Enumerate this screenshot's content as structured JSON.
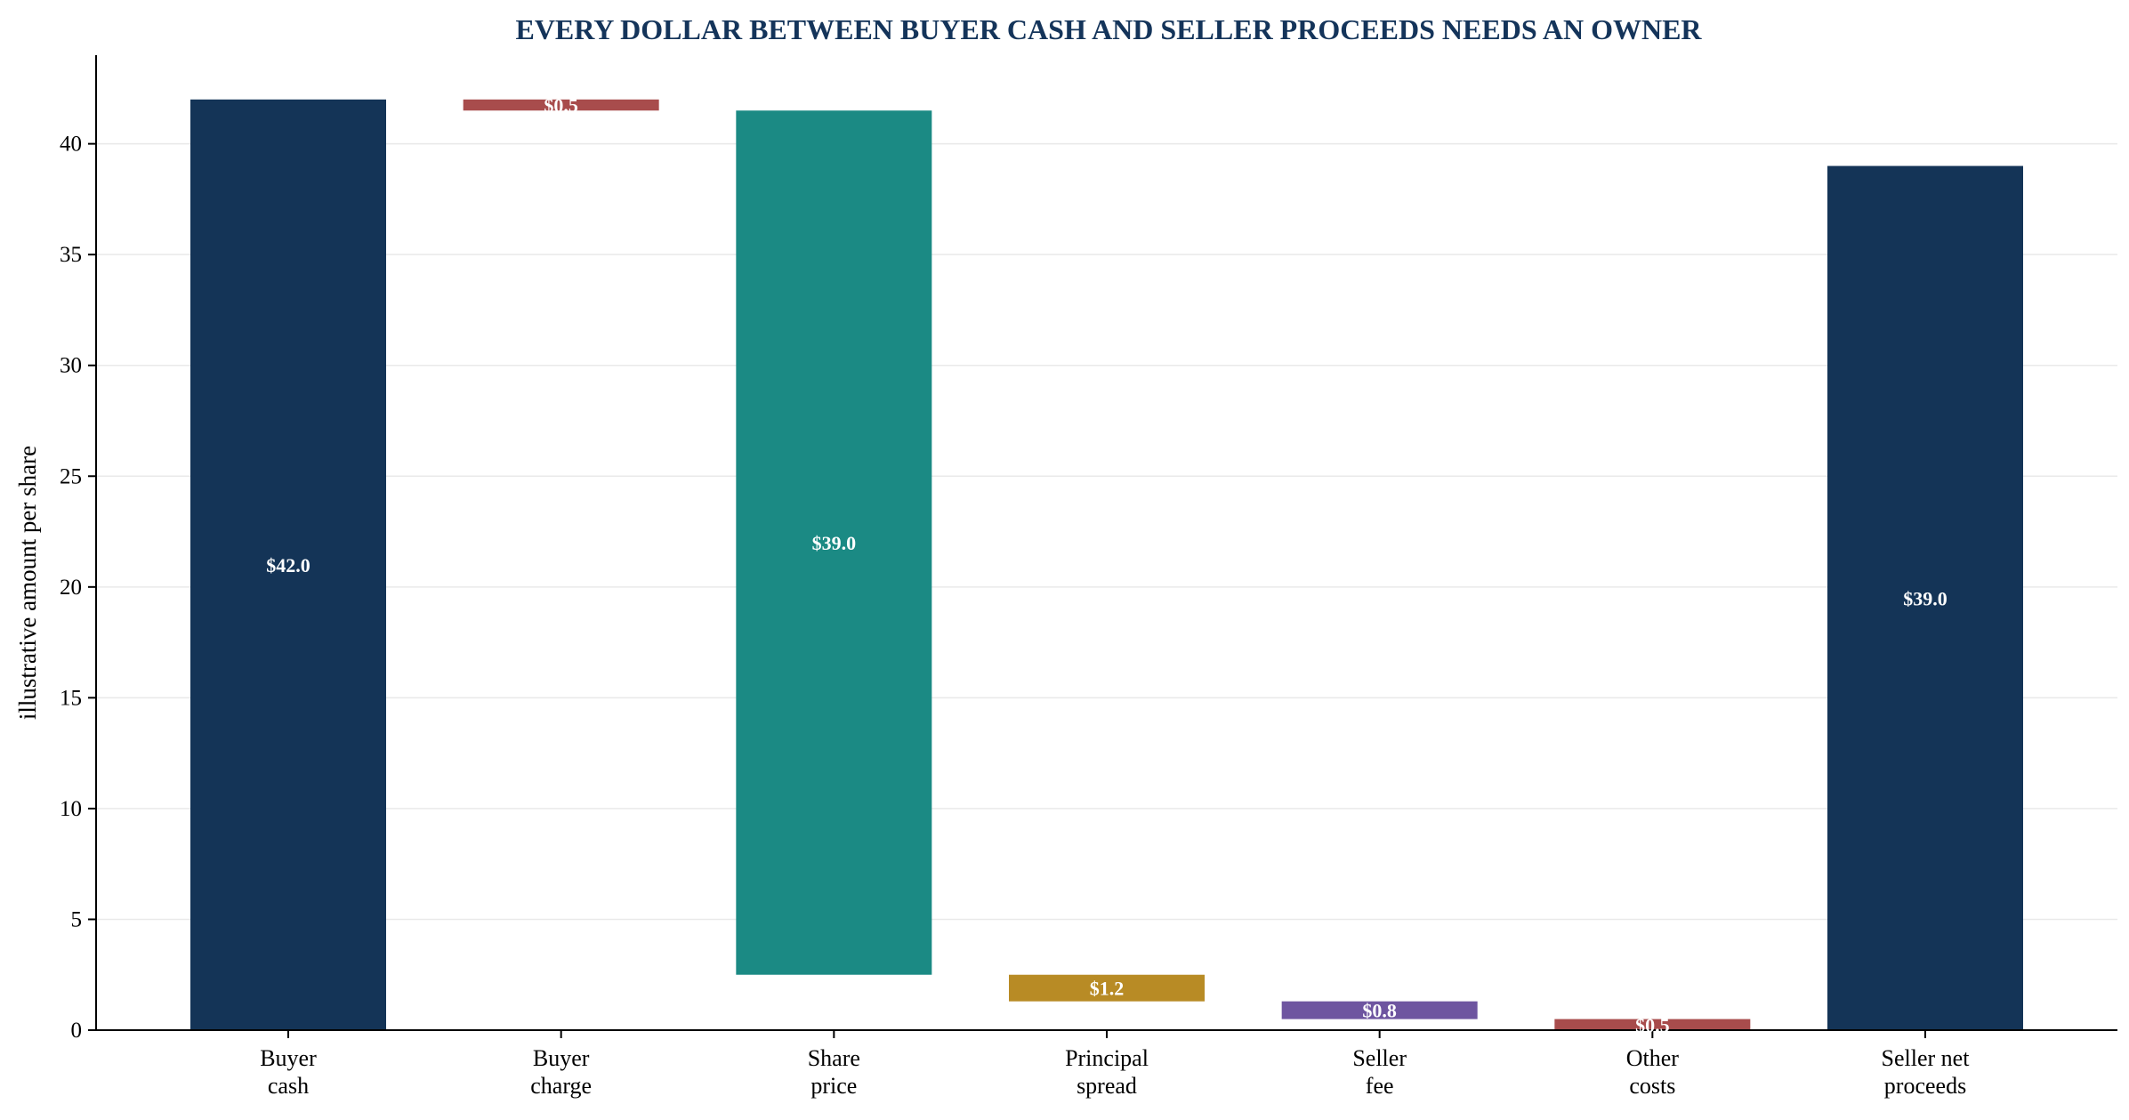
{
  "chart_data": {
    "type": "bar",
    "subtype": "waterfall",
    "title": "EVERY DOLLAR BETWEEN BUYER CASH AND SELLER PROCEEDS NEEDS AN OWNER",
    "xlabel": "",
    "ylabel": "illustrative amount per share",
    "ylim": [
      0,
      44
    ],
    "yticks": [
      0,
      5,
      10,
      15,
      20,
      25,
      30,
      35,
      40
    ],
    "grid": "horizontal",
    "legend": "none",
    "bars": [
      {
        "category": [
          "Buyer",
          "cash"
        ],
        "start": 0,
        "end": 42.0,
        "value": 42.0,
        "label": "$42.0",
        "color": "#143457"
      },
      {
        "category": [
          "Buyer",
          "charge"
        ],
        "start": 41.5,
        "end": 42.0,
        "value": 0.5,
        "label": "$0.5",
        "color": "#a84c4c"
      },
      {
        "category": [
          "Share",
          "price"
        ],
        "start": 2.5,
        "end": 41.5,
        "value": 39.0,
        "label": "$39.0",
        "color": "#1b8a84"
      },
      {
        "category": [
          "Principal",
          "spread"
        ],
        "start": 1.3,
        "end": 2.5,
        "value": 1.2,
        "label": "$1.2",
        "color": "#b88b25"
      },
      {
        "category": [
          "Seller",
          "fee"
        ],
        "start": 0.5,
        "end": 1.3,
        "value": 0.8,
        "label": "$0.8",
        "color": "#6e55a0"
      },
      {
        "category": [
          "Other",
          "costs"
        ],
        "start": 0,
        "end": 0.5,
        "value": 0.5,
        "label": "$0.5",
        "color": "#a84c4c"
      },
      {
        "category": [
          "Seller net",
          "proceeds"
        ],
        "start": 0,
        "end": 39.0,
        "value": 39.0,
        "label": "$39.0",
        "color": "#143457"
      }
    ]
  }
}
